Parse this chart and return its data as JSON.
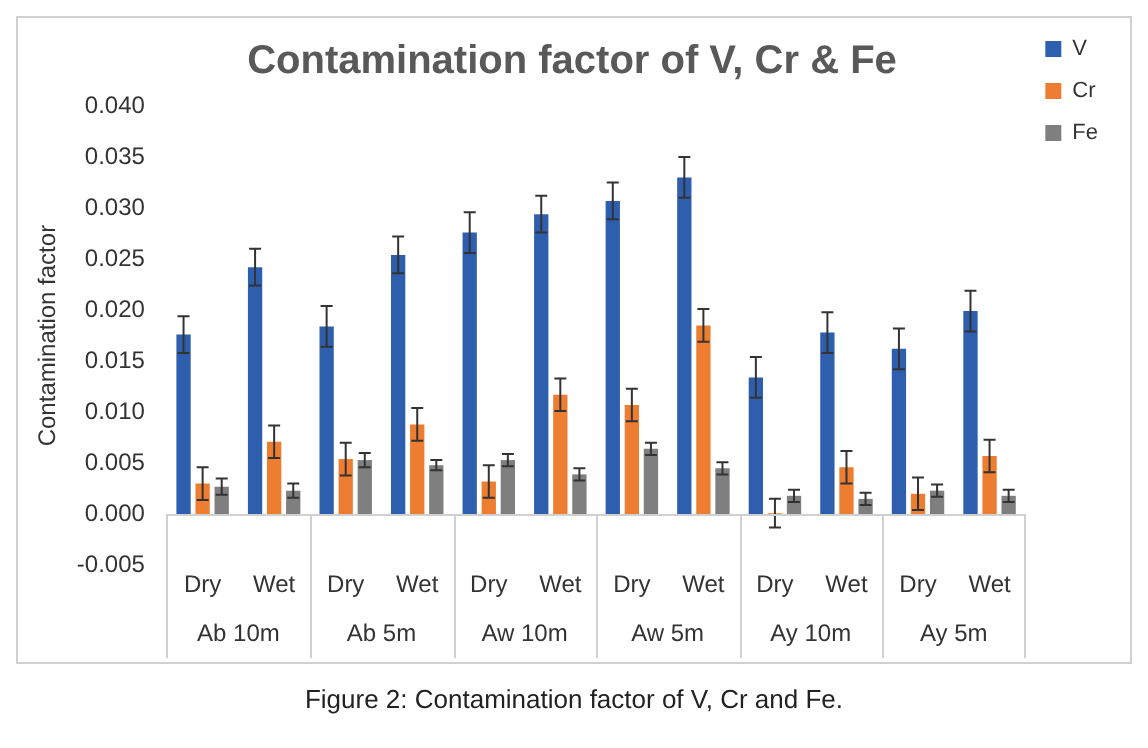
{
  "chart_data": {
    "type": "bar",
    "title": "Contamination factor of V, Cr & Fe",
    "ylabel": "Contamination factor",
    "categories": [
      "Dry",
      "Wet",
      "Dry",
      "Wet",
      "Dry",
      "Wet",
      "Dry",
      "Wet",
      "Dry",
      "Wet",
      "Dry",
      "Wet"
    ],
    "series": [
      {
        "name": "V",
        "color": "#2e5fae",
        "values": [
          0.0176,
          0.0242,
          0.0184,
          0.0254,
          0.0276,
          0.0294,
          0.0307,
          0.033,
          0.0134,
          0.0178,
          0.0162,
          0.0199
        ],
        "errors": [
          0.0018,
          0.0018,
          0.002,
          0.0018,
          0.002,
          0.0018,
          0.0018,
          0.002,
          0.002,
          0.002,
          0.002,
          0.002
        ]
      },
      {
        "name": "Cr",
        "color": "#ed7d31",
        "values": [
          0.003,
          0.0071,
          0.0054,
          0.0088,
          0.0032,
          0.0117,
          0.0107,
          0.0185,
          0.0001,
          0.0046,
          0.002,
          0.0057
        ],
        "errors": [
          0.0016,
          0.0016,
          0.0016,
          0.0016,
          0.0016,
          0.0016,
          0.0016,
          0.0016,
          0.0014,
          0.0016,
          0.0016,
          0.0016
        ]
      },
      {
        "name": "Fe",
        "color": "#7f7f7f",
        "values": [
          0.0027,
          0.0023,
          0.0053,
          0.0048,
          0.0053,
          0.0039,
          0.0064,
          0.0045,
          0.0018,
          0.0015,
          0.0023,
          0.0018
        ],
        "errors": [
          0.0008,
          0.0007,
          0.0007,
          0.0005,
          0.0006,
          0.0006,
          0.0006,
          0.0006,
          0.0006,
          0.0006,
          0.0006,
          0.0006
        ]
      }
    ],
    "ylim": [
      -0.005,
      0.04
    ],
    "yticks": [
      {
        "value": -0.005,
        "label": "-0.005"
      },
      {
        "value": 0,
        "label": "0.000"
      },
      {
        "value": 0.005,
        "label": "0.005"
      },
      {
        "value": 0.01,
        "label": "0.010"
      },
      {
        "value": 0.015,
        "label": "0.015"
      },
      {
        "value": 0.02,
        "label": "0.020"
      },
      {
        "value": 0.025,
        "label": "0.025"
      },
      {
        "value": 0.03,
        "label": "0.030"
      },
      {
        "value": 0.035,
        "label": "0.035"
      },
      {
        "value": 0.04,
        "label": "0.040"
      }
    ],
    "grid": false,
    "legend": "top right",
    "annotations": [
      "Ab 10m",
      "Ab 5m",
      "Aw 10m",
      "Aw 5m",
      "Ay 10m",
      "Ay 5m",
      "Figure 2: Contamination factor of V, Cr and Fe."
    ]
  }
}
